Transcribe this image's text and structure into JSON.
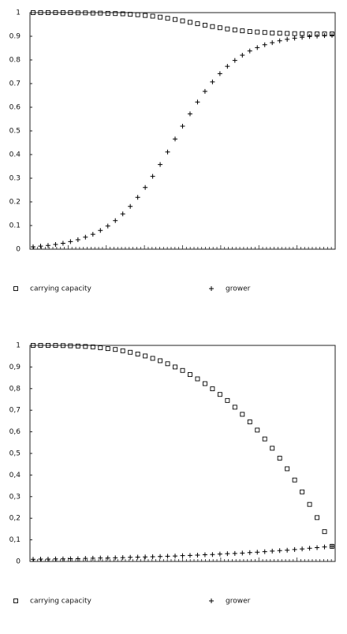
{
  "chart_data": [
    {
      "type": "line",
      "legend": "bottom",
      "ylim": [
        0,
        1
      ],
      "yticks": [
        0,
        0.1,
        0.2,
        0.3,
        0.4,
        0.5,
        0.6,
        0.7,
        0.8,
        0.9,
        1
      ],
      "series": [
        {
          "name": "carrying capacity",
          "color": "#000000",
          "marker": "square",
          "values": [
            1.0,
            1.0,
            1.0,
            1.0,
            1.0,
            1.0,
            0.999,
            0.999,
            0.998,
            0.998,
            0.997,
            0.996,
            0.995,
            0.993,
            0.991,
            0.988,
            0.985,
            0.981,
            0.976,
            0.971,
            0.965,
            0.959,
            0.953,
            0.947,
            0.941,
            0.936,
            0.931,
            0.927,
            0.923,
            0.92,
            0.918,
            0.916,
            0.914,
            0.913,
            0.912,
            0.911,
            0.911,
            0.91,
            0.91,
            0.91,
            0.91
          ]
        },
        {
          "name": "grower",
          "color": "#000000",
          "marker": "plus",
          "values": [
            0.01,
            0.013,
            0.016,
            0.02,
            0.025,
            0.032,
            0.04,
            0.051,
            0.063,
            0.079,
            0.098,
            0.121,
            0.149,
            0.181,
            0.219,
            0.261,
            0.308,
            0.358,
            0.411,
            0.466,
            0.52,
            0.572,
            0.622,
            0.667,
            0.707,
            0.742,
            0.773,
            0.798,
            0.82,
            0.838,
            0.852,
            0.864,
            0.873,
            0.881,
            0.887,
            0.892,
            0.896,
            0.899,
            0.901,
            0.903,
            0.904
          ]
        }
      ]
    },
    {
      "type": "line",
      "legend": "bottom",
      "ylim": [
        0,
        1
      ],
      "yticks": [
        0,
        {
          "value": 0.1,
          "label": "0,1"
        },
        {
          "value": 0.2,
          "label": "0,2"
        },
        {
          "value": 0.3,
          "label": "0,3"
        },
        {
          "value": 0.4,
          "label": "0,4"
        },
        {
          "value": 0.5,
          "label": "0,5"
        },
        {
          "value": 0.6,
          "label": "0,6"
        },
        {
          "value": 0.7,
          "label": "0,7"
        },
        {
          "value": 0.8,
          "label": "0,8"
        },
        {
          "value": 0.9,
          "label": "0,9"
        },
        1
      ],
      "series": [
        {
          "name": "carrying capacity",
          "color": "#000000",
          "marker": "square",
          "values": [
            1.0,
            1.0,
            1.0,
            1.0,
            0.999,
            0.998,
            0.997,
            0.995,
            0.993,
            0.989,
            0.985,
            0.981,
            0.975,
            0.968,
            0.96,
            0.951,
            0.94,
            0.929,
            0.915,
            0.9,
            0.884,
            0.865,
            0.845,
            0.823,
            0.799,
            0.773,
            0.745,
            0.714,
            0.681,
            0.646,
            0.608,
            0.567,
            0.524,
            0.478,
            0.429,
            0.377,
            0.322,
            0.264,
            0.203,
            0.138,
            0.07
          ]
        },
        {
          "name": "grower",
          "color": "#000000",
          "marker": "plus",
          "values": [
            0.01,
            0.011,
            0.011,
            0.012,
            0.012,
            0.013,
            0.013,
            0.014,
            0.015,
            0.016,
            0.016,
            0.017,
            0.018,
            0.019,
            0.02,
            0.021,
            0.022,
            0.023,
            0.024,
            0.025,
            0.027,
            0.028,
            0.029,
            0.031,
            0.032,
            0.034,
            0.036,
            0.037,
            0.039,
            0.041,
            0.043,
            0.045,
            0.048,
            0.05,
            0.052,
            0.055,
            0.058,
            0.061,
            0.064,
            0.067,
            0.07
          ]
        }
      ]
    }
  ]
}
